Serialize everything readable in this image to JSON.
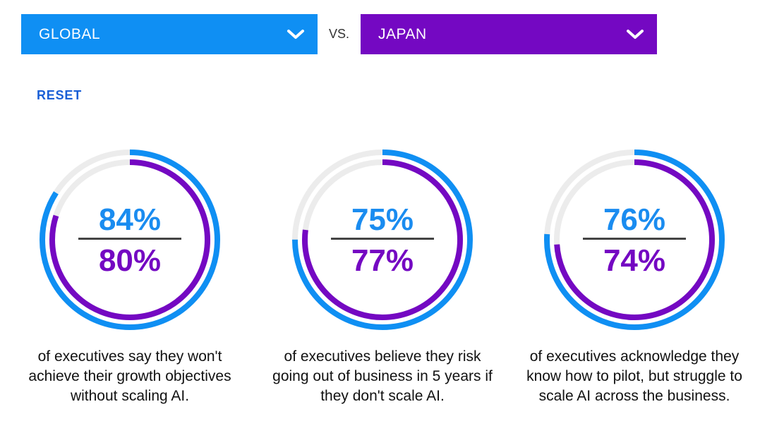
{
  "selector": {
    "left_label": "GLOBAL",
    "vs_label": "VS.",
    "right_label": "JAPAN",
    "reset_label": "RESET"
  },
  "colors": {
    "global": "#0f8ff3",
    "japan": "#7408c2",
    "track": "#ececec",
    "reset": "#1a5fd6"
  },
  "chart_data": [
    {
      "type": "pie",
      "series": [
        {
          "name": "GLOBAL",
          "value": 84
        },
        {
          "name": "JAPAN",
          "value": 80
        }
      ],
      "labels": {
        "global": "84%",
        "japan": "80%"
      },
      "caption": "of executives say they won't achieve their growth objectives without scaling AI."
    },
    {
      "type": "pie",
      "series": [
        {
          "name": "GLOBAL",
          "value": 75
        },
        {
          "name": "JAPAN",
          "value": 77
        }
      ],
      "labels": {
        "global": "75%",
        "japan": "77%"
      },
      "caption": "of executives believe they risk going out of business in 5 years if they don't scale AI."
    },
    {
      "type": "pie",
      "series": [
        {
          "name": "GLOBAL",
          "value": 76
        },
        {
          "name": "JAPAN",
          "value": 74
        }
      ],
      "labels": {
        "global": "76%",
        "japan": "74%"
      },
      "caption": "of executives acknowledge they know how to pilot, but struggle to scale AI across the business."
    }
  ]
}
